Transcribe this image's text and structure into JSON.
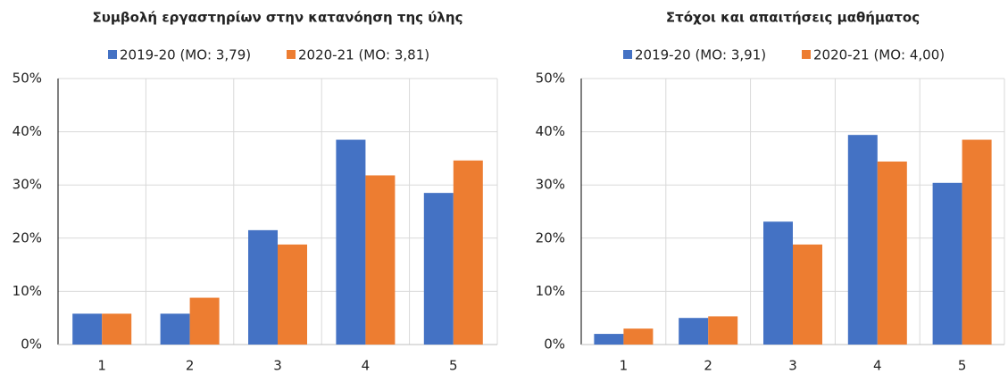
{
  "chart_data": [
    {
      "type": "bar",
      "title": "Συμβολή εργαστηρίων στην κατανόηση της ύλης",
      "categories": [
        "1",
        "2",
        "3",
        "4",
        "5"
      ],
      "series": [
        {
          "name": "2019-20 (ΜΟ: 3,79)",
          "color": "#4472c4",
          "values": [
            5.8,
            5.8,
            21.5,
            38.5,
            28.5
          ]
        },
        {
          "name": "2020-21 (ΜΟ: 3,81)",
          "color": "#ed7d31",
          "values": [
            5.8,
            8.8,
            18.8,
            31.8,
            34.6
          ]
        }
      ],
      "ylim": [
        0,
        50
      ],
      "yticks": [
        {
          "value": 0,
          "label": "0%"
        },
        {
          "value": 10,
          "label": "10%"
        },
        {
          "value": 20,
          "label": "20%"
        },
        {
          "value": 30,
          "label": "30%"
        },
        {
          "value": 40,
          "label": "40%"
        },
        {
          "value": 50,
          "label": "50%"
        }
      ],
      "grid": true,
      "legend": "top"
    },
    {
      "type": "bar",
      "title": "Στόχοι και απαιτήσεις μαθήματος",
      "categories": [
        "1",
        "2",
        "3",
        "4",
        "5"
      ],
      "series": [
        {
          "name": "2019-20 (ΜΟ: 3,91)",
          "color": "#4472c4",
          "values": [
            2.0,
            5.0,
            23.1,
            39.4,
            30.4
          ]
        },
        {
          "name": "2020-21 (ΜΟ: 4,00)",
          "color": "#ed7d31",
          "values": [
            3.0,
            5.3,
            18.8,
            34.4,
            38.5
          ]
        }
      ],
      "ylim": [
        0,
        50
      ],
      "yticks": [
        {
          "value": 0,
          "label": "0%"
        },
        {
          "value": 10,
          "label": "10%"
        },
        {
          "value": 20,
          "label": "20%"
        },
        {
          "value": 30,
          "label": "30%"
        },
        {
          "value": 40,
          "label": "40%"
        },
        {
          "value": 50,
          "label": "50%"
        }
      ],
      "grid": true,
      "legend": "top"
    }
  ]
}
